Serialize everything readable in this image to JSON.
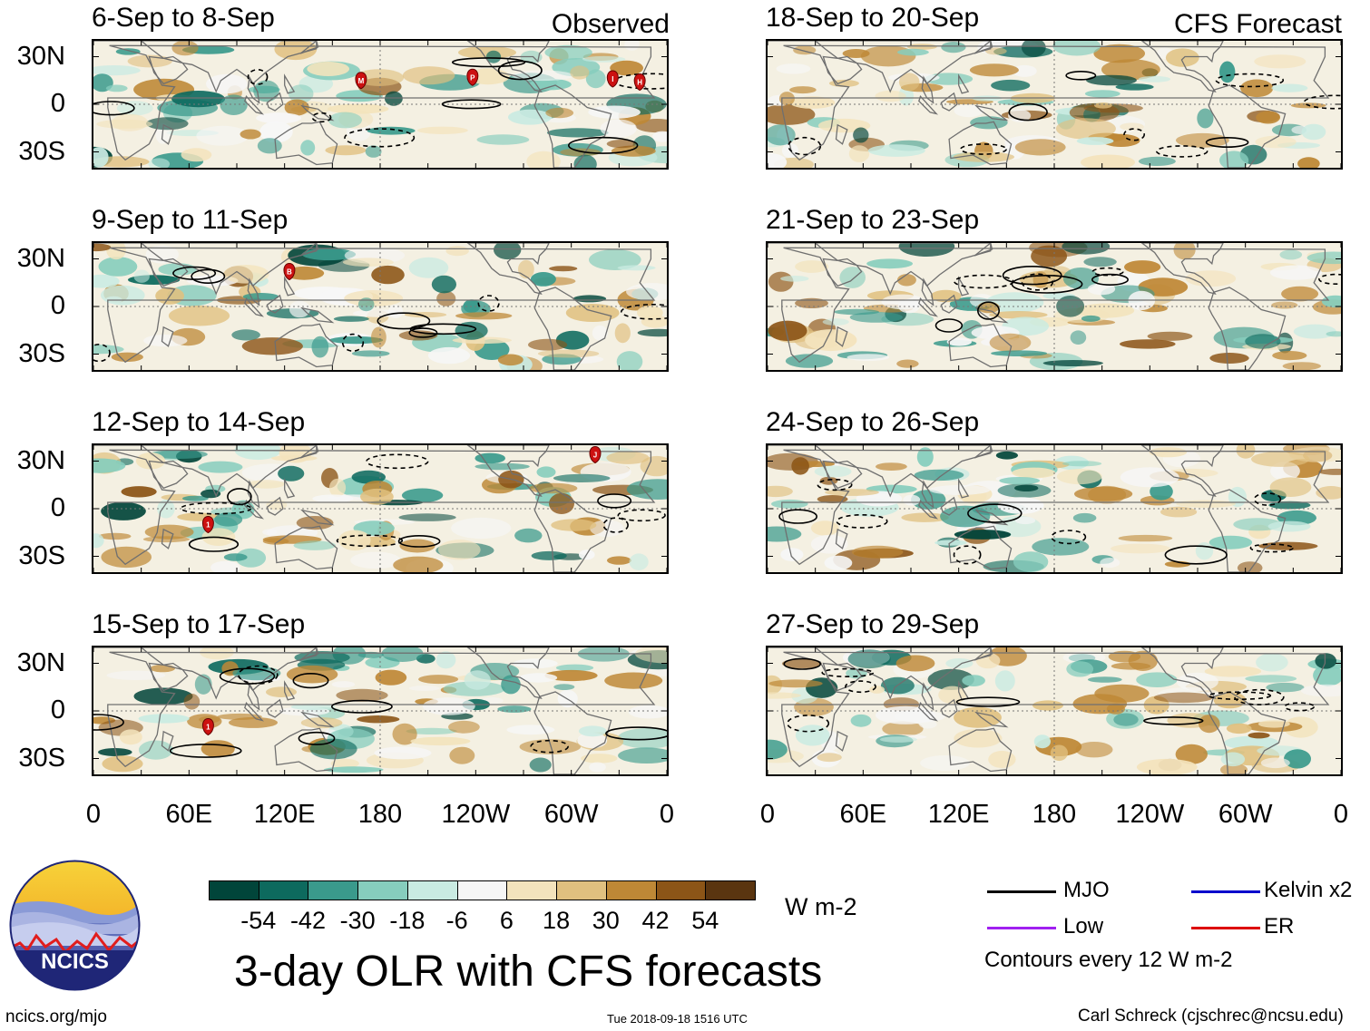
{
  "title": "3-day OLR with CFS forecasts",
  "footer": {
    "url": "ncics.org/mjo",
    "timestamp": "Tue 2018-09-18 1516 UTC",
    "author": "Carl Schreck (cjschrec@ncsu.edu)",
    "logo_text": "NCICS"
  },
  "column_tags": {
    "left": "Observed",
    "right": "CFS Forecast"
  },
  "chart_data": [
    {
      "type": "heatmap",
      "title": "6-Sep to 8-Sep",
      "kind": "observed",
      "storms": [
        "M",
        "P",
        "I",
        "H"
      ]
    },
    {
      "type": "heatmap",
      "title": "9-Sep to 11-Sep",
      "kind": "observed",
      "storms": [
        "B"
      ]
    },
    {
      "type": "heatmap",
      "title": "12-Sep to 14-Sep",
      "kind": "observed",
      "storms": [
        "1",
        "J"
      ]
    },
    {
      "type": "heatmap",
      "title": "15-Sep to 17-Sep",
      "kind": "observed",
      "storms": [
        "1"
      ]
    },
    {
      "type": "heatmap",
      "title": "18-Sep to 20-Sep",
      "kind": "forecast",
      "storms": []
    },
    {
      "type": "heatmap",
      "title": "21-Sep to 23-Sep",
      "kind": "forecast",
      "storms": []
    },
    {
      "type": "heatmap",
      "title": "24-Sep to 26-Sep",
      "kind": "forecast",
      "storms": []
    },
    {
      "type": "heatmap",
      "title": "27-Sep to 29-Sep",
      "kind": "forecast",
      "storms": []
    }
  ],
  "axes": {
    "lat_labels": [
      "30N",
      "0",
      "30S"
    ],
    "lat_values": [
      30,
      0,
      -30
    ],
    "lon_labels": [
      "0",
      "60E",
      "120E",
      "180",
      "120W",
      "60W",
      "0"
    ],
    "lon_values": [
      0,
      60,
      120,
      180,
      240,
      300,
      360
    ],
    "lon_range": [
      0,
      360
    ],
    "lat_range": [
      -40,
      40
    ]
  },
  "colorbar": {
    "units": "W m-2",
    "ticks": [
      "-54",
      "-42",
      "-30",
      "-18",
      "-6",
      "6",
      "18",
      "30",
      "42",
      "54"
    ],
    "colors": [
      "#01453a",
      "#0d6a5e",
      "#3a9a8c",
      "#86cdbd",
      "#c9ebe2",
      "#f6f6f6",
      "#f3e3bc",
      "#e0c07f",
      "#be8836",
      "#8c5517",
      "#5a3510"
    ]
  },
  "legend": {
    "items": [
      {
        "label": "MJO",
        "color": "#000000"
      },
      {
        "label": "Kelvin x2",
        "color": "#0000cc"
      },
      {
        "label": "Low",
        "color": "#a020f0"
      },
      {
        "label": "ER",
        "color": "#dd0000"
      }
    ],
    "note": "Contours every 12 W m-2"
  }
}
